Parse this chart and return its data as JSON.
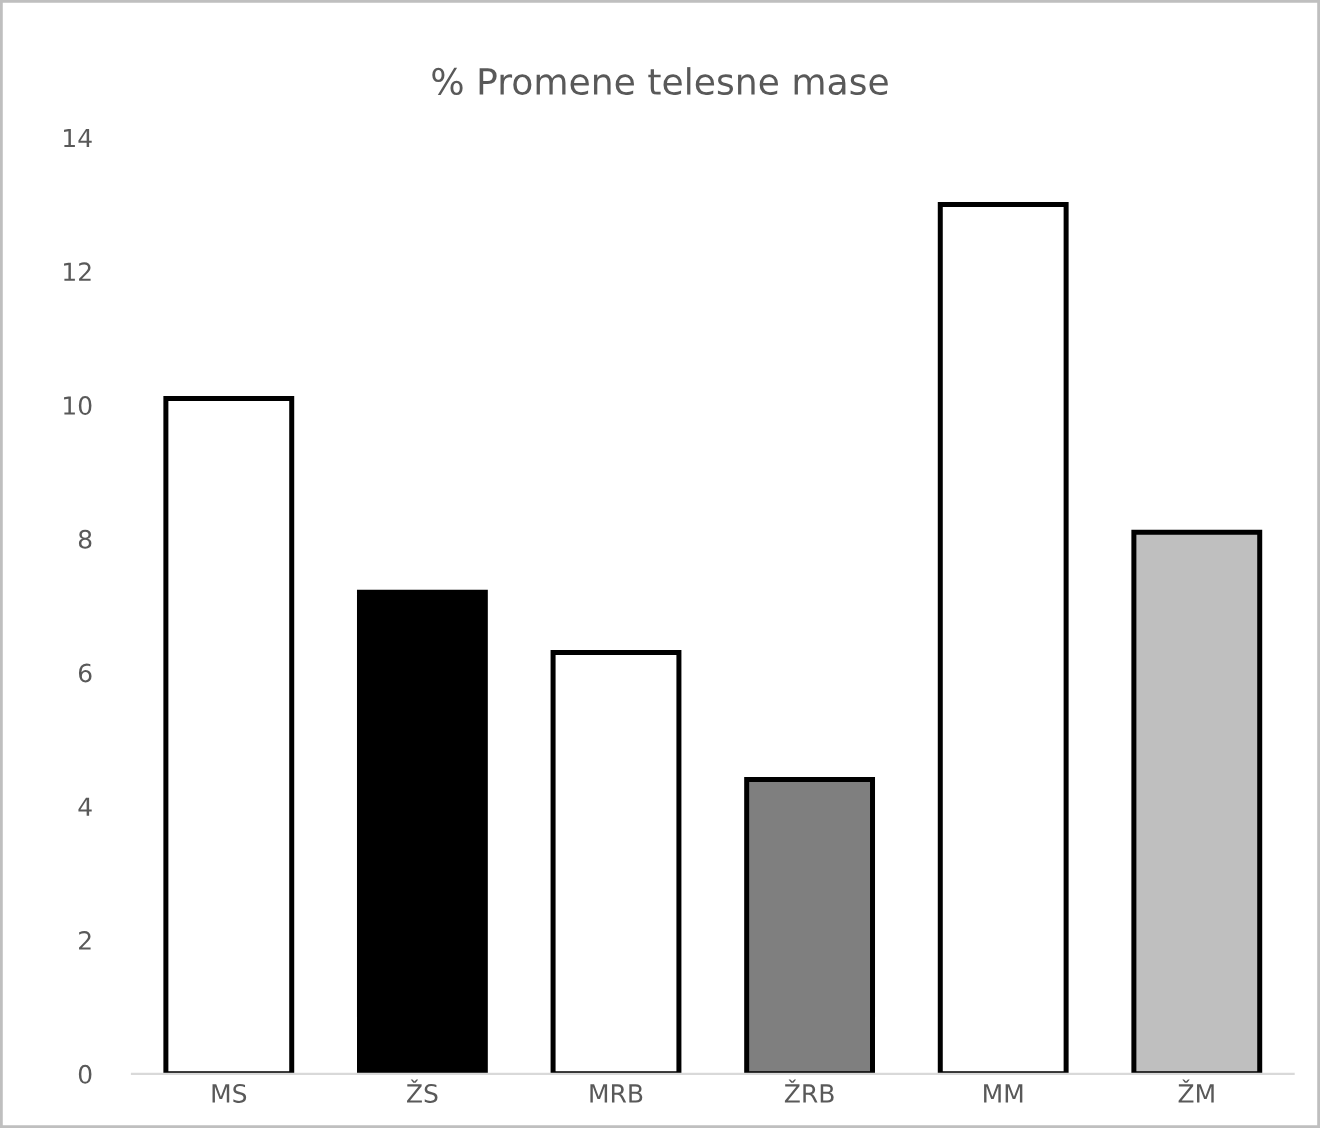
{
  "chart_data": {
    "type": "bar",
    "title": "% Promene telesne mase",
    "categories": [
      "MS",
      "ŽS",
      "MRB",
      "ŽRB",
      "MM",
      "ŽM"
    ],
    "values": [
      10.1,
      7.2,
      6.3,
      4.4,
      13.0,
      8.1
    ],
    "colors": [
      "#ffffff",
      "#000000",
      "#ffffff",
      "#7f7f7f",
      "#ffffff",
      "#bfbfbf"
    ],
    "ylim": [
      0,
      14
    ],
    "yticks": [
      0,
      2,
      4,
      6,
      8,
      10,
      12,
      14
    ],
    "grid": false,
    "legend": false
  }
}
